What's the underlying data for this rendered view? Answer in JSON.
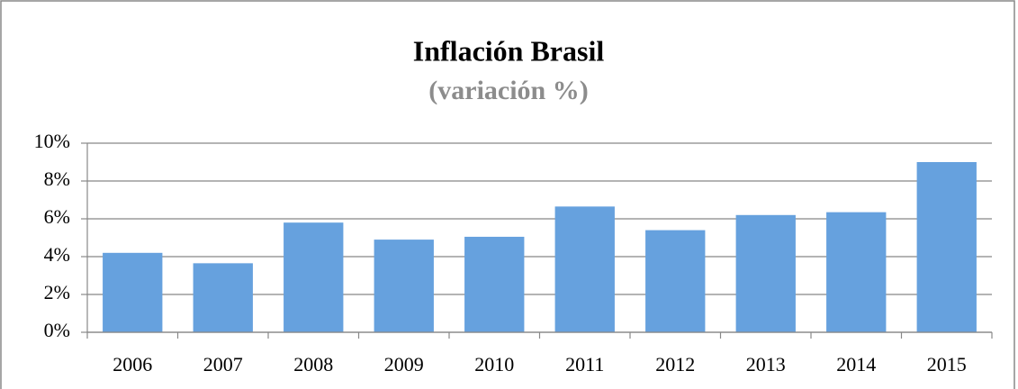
{
  "chart_data": {
    "type": "bar",
    "title": "Inflación Brasil",
    "subtitle": "(variación %)",
    "categories": [
      "2006",
      "2007",
      "2008",
      "2009",
      "2010",
      "2011",
      "2012",
      "2013",
      "2014",
      "2015"
    ],
    "values": [
      4.2,
      3.65,
      5.8,
      4.9,
      5.05,
      6.65,
      5.4,
      6.2,
      6.35,
      9.0
    ],
    "color": "#66a1de",
    "ylim": [
      0,
      10
    ],
    "yticks": [
      {
        "value": 0,
        "label": "0%"
      },
      {
        "value": 2,
        "label": "2%"
      },
      {
        "value": 4,
        "label": "4%"
      },
      {
        "value": 6,
        "label": "6%"
      },
      {
        "value": 8,
        "label": "8%"
      },
      {
        "value": 10,
        "label": "10%"
      }
    ],
    "grid": true
  }
}
